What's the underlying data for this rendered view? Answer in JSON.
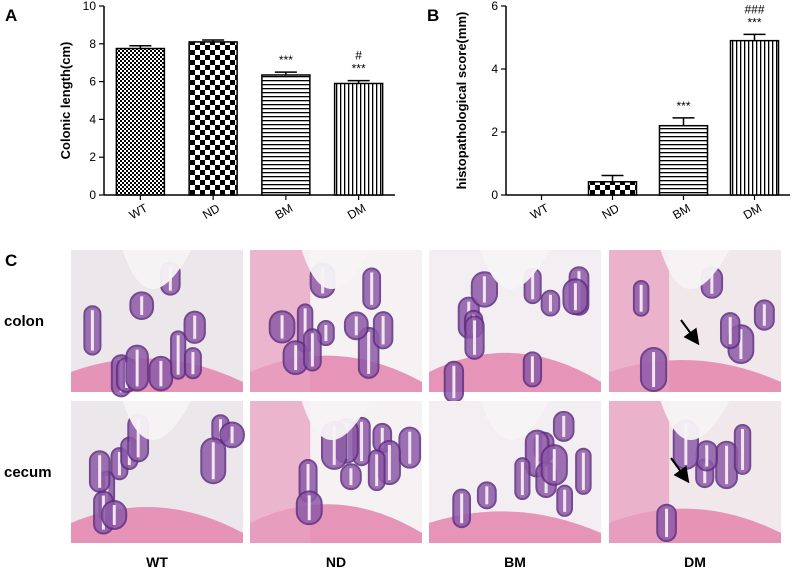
{
  "panel_labels": {
    "a": "A",
    "b": "B",
    "c": "C"
  },
  "chart_data": [
    {
      "type": "bar",
      "categories": [
        "WT",
        "ND",
        "BM",
        "DM"
      ],
      "values": [
        7.75,
        8.1,
        6.35,
        5.9
      ],
      "errors": [
        0.15,
        0.1,
        0.15,
        0.15
      ],
      "ylabel": "Colonic length(cm)",
      "ylim": [
        0,
        10
      ],
      "yticks": [
        "0",
        "2",
        "4",
        "6",
        "8",
        "10"
      ],
      "patterns": [
        "dots",
        "checker",
        "hlines",
        "vlines"
      ],
      "annotations": [
        "",
        "",
        "***",
        "#\n***"
      ]
    },
    {
      "type": "bar",
      "categories": [
        "WT",
        "ND",
        "BM",
        "DM"
      ],
      "values": [
        0,
        0.42,
        2.2,
        4.9
      ],
      "errors": [
        0,
        0.2,
        0.25,
        0.2
      ],
      "ylabel": "histopathological score(mm)",
      "ylim": [
        0,
        6
      ],
      "yticks": [
        "0",
        "2",
        "4",
        "6"
      ],
      "patterns": [
        "none",
        "checker",
        "hlines",
        "vlines"
      ],
      "annotations": [
        "",
        "",
        "***",
        "###\n***"
      ]
    }
  ],
  "micrographs": {
    "rows": [
      "colon",
      "cecum"
    ],
    "columns": [
      "WT",
      "ND",
      "BM",
      "DM"
    ],
    "arrow_cells": [
      "colon-DM",
      "cecum-DM"
    ]
  }
}
